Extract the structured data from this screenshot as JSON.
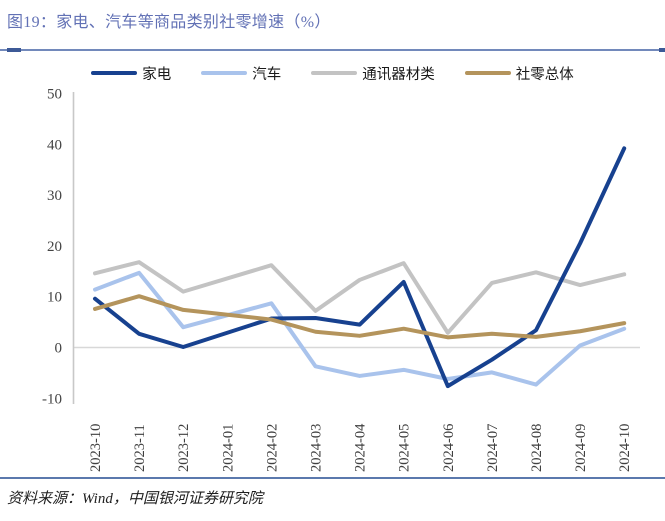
{
  "header": {
    "title": "图19：家电、汽车等商品类别社零增速（%）"
  },
  "footer": {
    "source": "资料来源：Wind，中国银河证券研究院"
  },
  "colors": {
    "title_text": "#6271b5",
    "divider_accent": "#5b79ad",
    "series_appliances": "#17418f",
    "series_autos": "#a9c3ec",
    "series_comm_equipment": "#c3c3c3",
    "series_retail_total": "#b4945c",
    "zero_gridline": "#d8d8d8",
    "axis_line": "#c8c8c8"
  },
  "chart_data": {
    "type": "line",
    "title": "图19：家电、汽车等商品类别社零增速（%）",
    "xlabel": "",
    "ylabel": "",
    "ylim": [
      -10,
      50
    ],
    "yticks": [
      50,
      40,
      30,
      20,
      10,
      0,
      -10
    ],
    "grid": "zero-line-only",
    "legend_position": "top",
    "note": "2024-01 has no published value (Jan-Feb combined); lines connect 2023-12 directly to 2024-02",
    "categories": [
      "2023-10",
      "2023-11",
      "2023-12",
      "2024-01",
      "2024-02",
      "2024-03",
      "2024-04",
      "2024-05",
      "2024-06",
      "2024-07",
      "2024-08",
      "2024-09",
      "2024-10"
    ],
    "series": [
      {
        "key": "appliances",
        "name": "家电",
        "color": "#17418f",
        "values": [
          9.6,
          2.7,
          0.1,
          null,
          5.7,
          5.8,
          4.5,
          12.9,
          -7.6,
          -2.4,
          3.4,
          20.5,
          39.2
        ]
      },
      {
        "key": "autos",
        "name": "汽车",
        "color": "#a9c3ec",
        "values": [
          11.4,
          14.7,
          4.0,
          null,
          8.7,
          -3.7,
          -5.6,
          -4.4,
          -6.2,
          -4.9,
          -7.3,
          0.4,
          3.7
        ]
      },
      {
        "key": "comm-equipment",
        "name": "通讯器材类",
        "color": "#c3c3c3",
        "values": [
          14.6,
          16.8,
          11.0,
          null,
          16.2,
          7.2,
          13.3,
          16.6,
          2.9,
          12.7,
          14.8,
          12.3,
          14.4
        ]
      },
      {
        "key": "retail-total",
        "name": "社零总体",
        "color": "#b4945c",
        "values": [
          7.6,
          10.1,
          7.4,
          null,
          5.5,
          3.1,
          2.3,
          3.7,
          2.0,
          2.7,
          2.1,
          3.2,
          4.8
        ]
      }
    ]
  }
}
